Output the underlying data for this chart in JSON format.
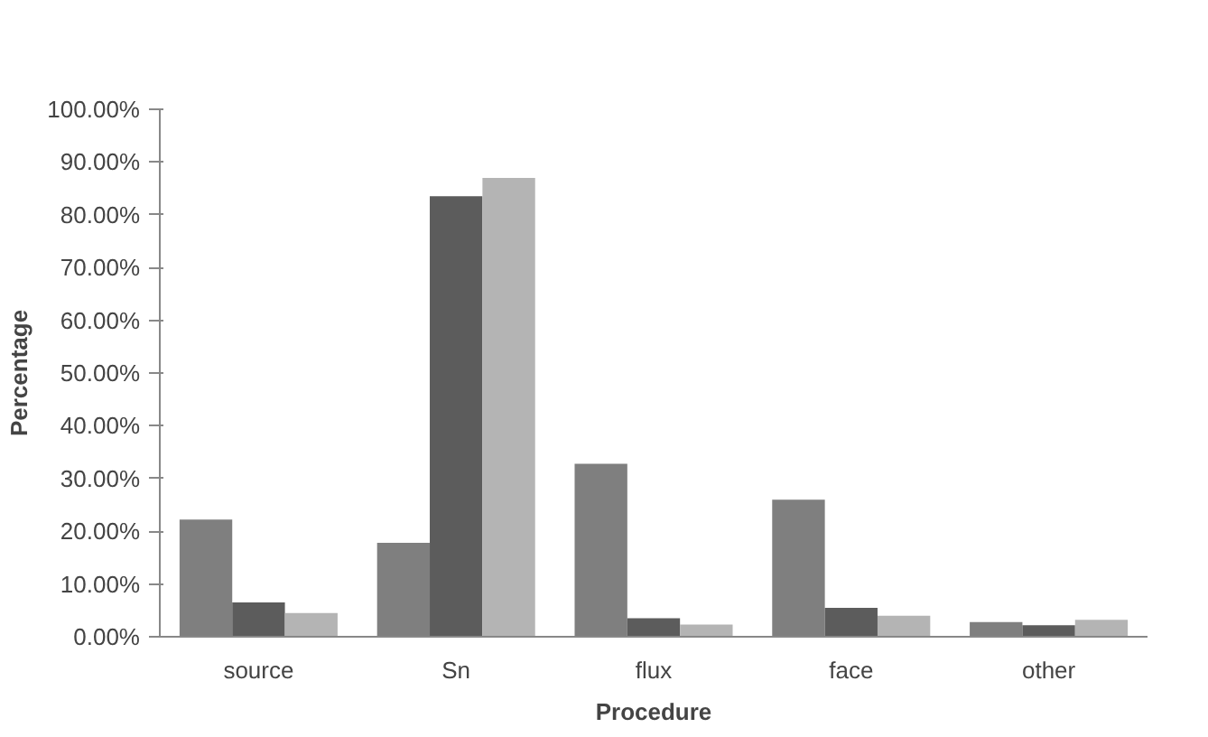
{
  "chart_data": {
    "type": "bar",
    "xlabel": "Procedure",
    "ylabel": "Percentage",
    "categories": [
      "source",
      "Sn",
      "flux",
      "face",
      "other"
    ],
    "series": [
      {
        "color": "#7f7f7f",
        "values": [
          22.2,
          17.8,
          32.8,
          26,
          2.8
        ]
      },
      {
        "color": "#5c5c5c",
        "values": [
          6.5,
          83.5,
          3.5,
          5.5,
          2.2
        ]
      },
      {
        "color": "#b4b4b4",
        "values": [
          4.5,
          87,
          2.3,
          4,
          3.2
        ]
      }
    ],
    "ylim": [
      0,
      100
    ],
    "yticks": [
      {
        "value": 0,
        "label": "0.00%"
      },
      {
        "value": 10,
        "label": "10.00%"
      },
      {
        "value": 20,
        "label": "20.00%"
      },
      {
        "value": 30,
        "label": "30.00%"
      },
      {
        "value": 40,
        "label": "40.00%"
      },
      {
        "value": 50,
        "label": "50.00%"
      },
      {
        "value": 60,
        "label": "60.00%"
      },
      {
        "value": 70,
        "label": "70.00%"
      },
      {
        "value": 80,
        "label": "80.00%"
      },
      {
        "value": 90,
        "label": "90.00%"
      },
      {
        "value": 100,
        "label": "100.00%"
      }
    ],
    "grid": false
  }
}
